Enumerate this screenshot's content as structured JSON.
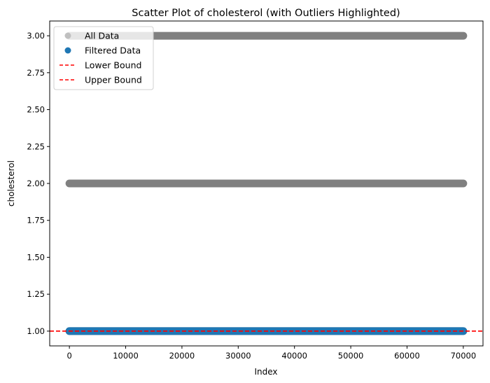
{
  "chart_data": {
    "type": "scatter",
    "title": "Scatter Plot of cholesterol (with Outliers Highlighted)",
    "xlabel": "Index",
    "ylabel": "cholesterol",
    "xlim": [
      -3500,
      73500
    ],
    "ylim": [
      0.9,
      3.1
    ],
    "x_ticks": [
      0,
      10000,
      20000,
      30000,
      40000,
      50000,
      60000,
      70000
    ],
    "y_ticks": [
      1.0,
      1.25,
      1.5,
      1.75,
      2.0,
      2.25,
      2.5,
      2.75,
      3.0
    ],
    "x_tick_labels": [
      "0",
      "10000",
      "20000",
      "30000",
      "40000",
      "50000",
      "60000",
      "70000"
    ],
    "y_tick_labels": [
      "1.00",
      "1.25",
      "1.50",
      "1.75",
      "2.00",
      "2.25",
      "2.50",
      "2.75",
      "3.00"
    ],
    "grid": false,
    "legend_position": "upper-left",
    "series": [
      {
        "name": "All Data",
        "kind": "scatter",
        "color": "#808080",
        "legend_color": "#c0c0c0",
        "levels": [
          1,
          2,
          3
        ],
        "x_range": [
          0,
          69999
        ]
      },
      {
        "name": "Filtered Data",
        "kind": "scatter",
        "color": "#1f77b4",
        "levels": [
          1
        ],
        "x_range": [
          0,
          69999
        ]
      },
      {
        "name": "Lower Bound",
        "kind": "hline",
        "color": "#ff0000",
        "y": 1.0,
        "style": "dashed"
      },
      {
        "name": "Upper Bound",
        "kind": "hline",
        "color": "#ff0000",
        "y": 1.0,
        "style": "dashed"
      }
    ]
  }
}
